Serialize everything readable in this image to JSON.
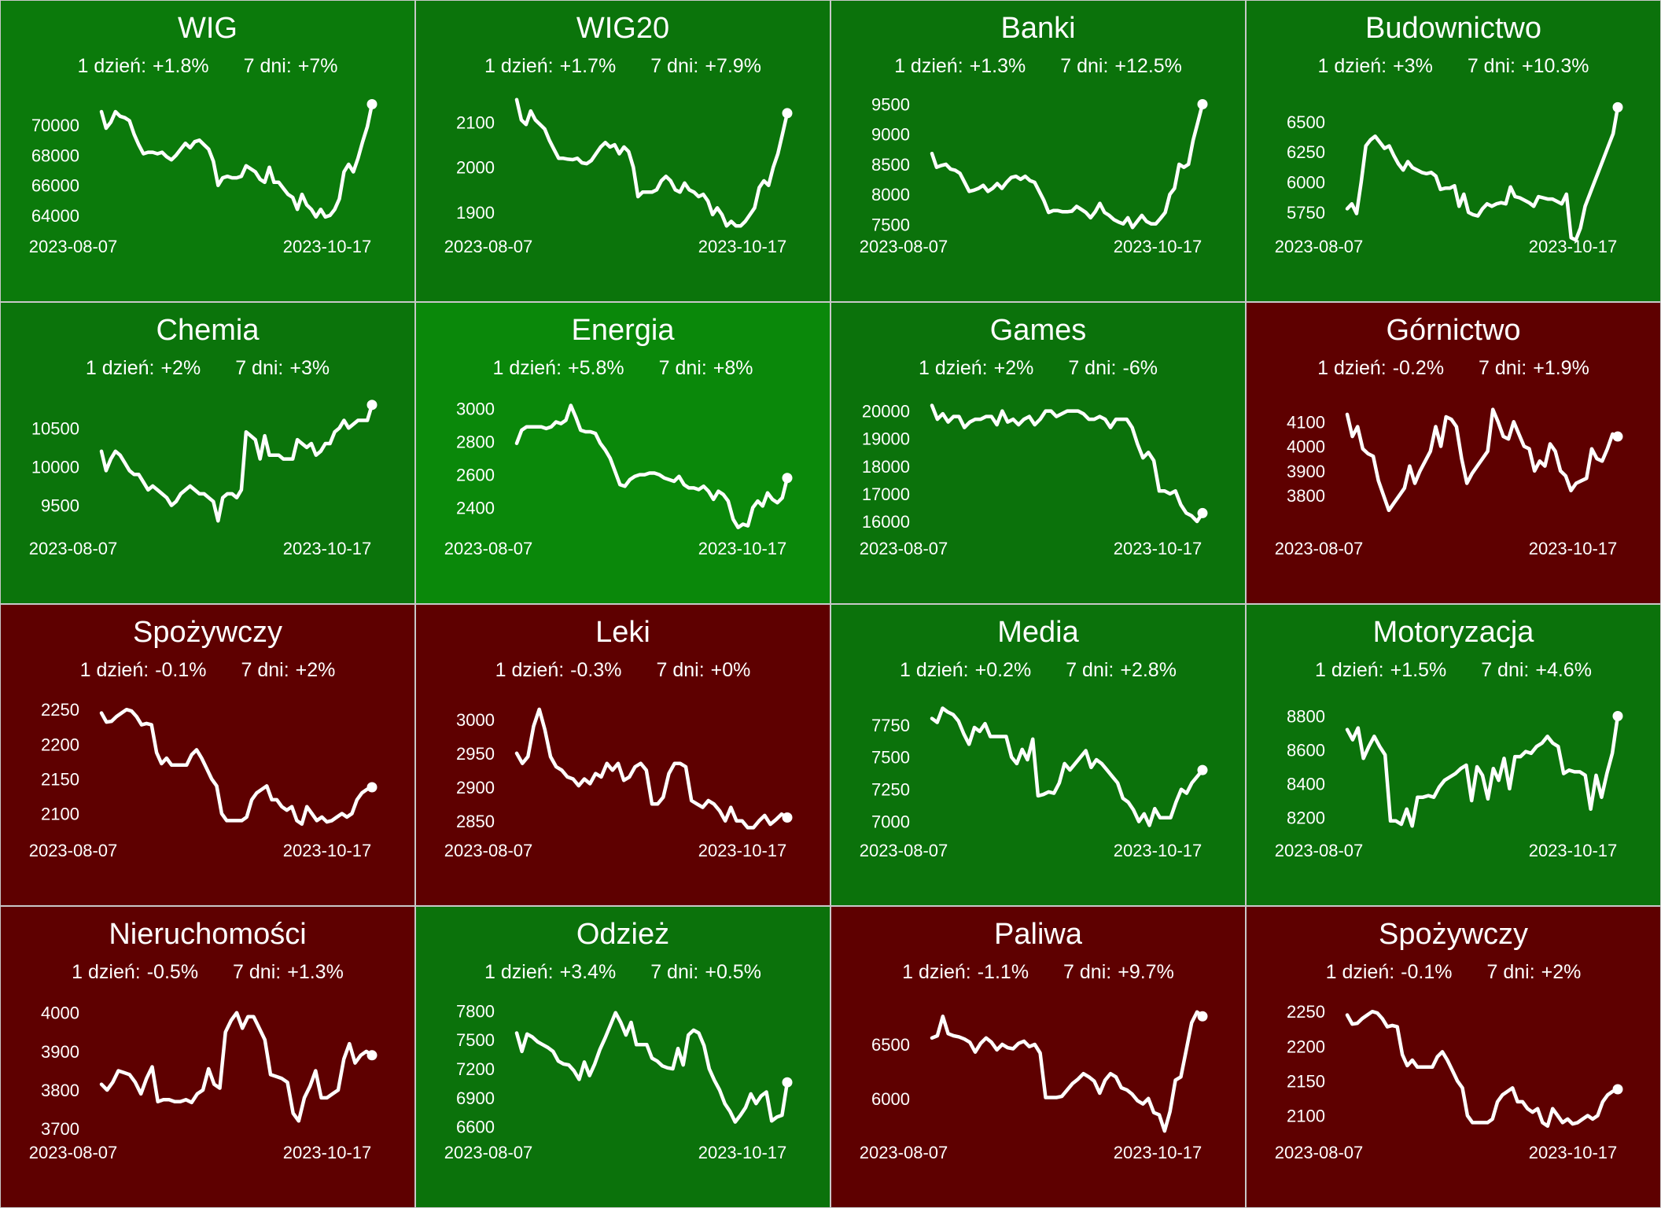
{
  "chart_data": [
    {
      "type": "line",
      "title": "WIG",
      "day1_label": "1 dzień:",
      "day1": "+1.8%",
      "day7_label": "7 dni:",
      "day7": "+7%",
      "bg": "#0b7a0b",
      "x_start": "2023-08-07",
      "x_end": "2023-10-17",
      "yticks": [
        64000,
        66000,
        68000,
        70000
      ],
      "ylim": [
        63000,
        72000
      ],
      "values": [
        70900,
        69800,
        70200,
        70900,
        70600,
        70500,
        70300,
        69400,
        68700,
        68100,
        68200,
        68200,
        68100,
        68200,
        67900,
        67700,
        68000,
        68400,
        68800,
        68500,
        68900,
        69000,
        68700,
        68400,
        67600,
        66000,
        66500,
        66600,
        66500,
        66500,
        66600,
        67300,
        67100,
        66900,
        66400,
        66200,
        67200,
        66200,
        66200,
        65800,
        65400,
        65200,
        64400,
        65400,
        64700,
        64400,
        63900,
        64400,
        63900,
        64000,
        64400,
        65100,
        66900,
        67400,
        66900,
        67800,
        68900,
        69900,
        71400
      ]
    },
    {
      "type": "line",
      "title": "WIG20",
      "day1_label": "1 dzień:",
      "day1": "+1.7%",
      "day7_label": "7 dni:",
      "day7": "+7.9%",
      "bg": "#0b740b",
      "x_start": "2023-08-07",
      "x_end": "2023-10-17",
      "yticks": [
        1900,
        2000,
        2100
      ],
      "ylim": [
        1860,
        2160
      ],
      "values": [
        2150,
        2105,
        2095,
        2125,
        2105,
        2095,
        2085,
        2060,
        2040,
        2020,
        2020,
        2018,
        2017,
        2020,
        2010,
        2008,
        2015,
        2030,
        2045,
        2055,
        2045,
        2050,
        2030,
        2045,
        2035,
        2000,
        1935,
        1945,
        1945,
        1945,
        1950,
        1970,
        1980,
        1970,
        1950,
        1945,
        1965,
        1950,
        1945,
        1935,
        1940,
        1925,
        1895,
        1910,
        1895,
        1870,
        1880,
        1870,
        1870,
        1880,
        1895,
        1910,
        1955,
        1970,
        1960,
        2000,
        2030,
        2075,
        2120
      ]
    },
    {
      "type": "line",
      "title": "Banki",
      "day1_label": "1 dzień:",
      "day1": "+1.3%",
      "day7_label": "7 dni:",
      "day7": "+12.5%",
      "bg": "#0b720b",
      "x_start": "2023-08-07",
      "x_end": "2023-10-17",
      "yticks": [
        7500,
        8000,
        8500,
        9000,
        9500
      ],
      "ylim": [
        7400,
        9650
      ],
      "values": [
        8680,
        8450,
        8480,
        8500,
        8420,
        8400,
        8350,
        8200,
        8050,
        8070,
        8100,
        8150,
        8050,
        8100,
        8180,
        8100,
        8200,
        8280,
        8300,
        8250,
        8300,
        8230,
        8200,
        8050,
        7900,
        7700,
        7730,
        7730,
        7710,
        7710,
        7720,
        7800,
        7750,
        7700,
        7610,
        7710,
        7850,
        7700,
        7650,
        7580,
        7540,
        7510,
        7610,
        7450,
        7550,
        7650,
        7550,
        7510,
        7510,
        7600,
        7700,
        8000,
        8100,
        8500,
        8450,
        8500,
        8900,
        9200,
        9500
      ]
    },
    {
      "type": "line",
      "title": "Budownictwo",
      "day1_label": "1 dzień:",
      "day1": "+3%",
      "day7_label": "7 dni:",
      "day7": "+10.3%",
      "bg": "#0b720b",
      "x_start": "2023-08-07",
      "x_end": "2023-10-17",
      "yticks": [
        5750,
        6000,
        6250,
        6500
      ],
      "ylim": [
        5600,
        6720
      ],
      "values": [
        5780,
        5820,
        5740,
        6000,
        6300,
        6350,
        6380,
        6330,
        6280,
        6300,
        6220,
        6150,
        6100,
        6170,
        6120,
        6100,
        6080,
        6070,
        6080,
        6050,
        5940,
        5950,
        5950,
        5970,
        5800,
        5900,
        5750,
        5730,
        5720,
        5780,
        5820,
        5800,
        5820,
        5830,
        5820,
        5960,
        5880,
        5870,
        5850,
        5830,
        5800,
        5880,
        5870,
        5860,
        5860,
        5840,
        5820,
        5900,
        5540,
        5520,
        5620,
        5800,
        5900,
        6000,
        6100,
        6200,
        6300,
        6400,
        6620
      ]
    },
    {
      "type": "line",
      "title": "Chemia",
      "day1_label": "1 dzień:",
      "day1": "+2%",
      "day7_label": "7 dni:",
      "day7": "+3%",
      "bg": "#0b740b",
      "x_start": "2023-08-07",
      "x_end": "2023-10-17",
      "yticks": [
        9500,
        10000,
        10500
      ],
      "ylim": [
        9150,
        10900
      ],
      "values": [
        10200,
        9950,
        10100,
        10200,
        10150,
        10050,
        9950,
        9900,
        9900,
        9800,
        9700,
        9750,
        9700,
        9650,
        9600,
        9500,
        9550,
        9650,
        9700,
        9750,
        9700,
        9650,
        9650,
        9600,
        9550,
        9300,
        9600,
        9650,
        9650,
        9600,
        9700,
        10450,
        10400,
        10350,
        10100,
        10400,
        10150,
        10150,
        10150,
        10100,
        10100,
        10100,
        10350,
        10300,
        10250,
        10300,
        10150,
        10200,
        10300,
        10300,
        10450,
        10500,
        10600,
        10500,
        10550,
        10600,
        10600,
        10600,
        10800
      ]
    },
    {
      "type": "line",
      "title": "Energia",
      "day1_label": "1 dzień:",
      "day1": "+5.8%",
      "day7_label": "7 dni:",
      "day7": "+8%",
      "bg": "#0a880a",
      "x_start": "2023-08-07",
      "x_end": "2023-10-17",
      "yticks": [
        2400,
        2600,
        2800,
        3000
      ],
      "ylim": [
        2250,
        3070
      ],
      "values": [
        2790,
        2870,
        2890,
        2890,
        2890,
        2890,
        2880,
        2890,
        2920,
        2910,
        2930,
        3020,
        2950,
        2870,
        2860,
        2860,
        2850,
        2790,
        2750,
        2700,
        2620,
        2540,
        2530,
        2570,
        2590,
        2600,
        2600,
        2610,
        2610,
        2600,
        2580,
        2570,
        2560,
        2590,
        2540,
        2520,
        2520,
        2510,
        2530,
        2500,
        2450,
        2500,
        2480,
        2440,
        2330,
        2280,
        2300,
        2290,
        2400,
        2440,
        2410,
        2490,
        2450,
        2430,
        2460,
        2580
      ]
    },
    {
      "type": "line",
      "title": "Games",
      "day1_label": "1 dzień:",
      "day1": "+2%",
      "day7_label": "7 dni:",
      "day7": "-6%",
      "bg": "#0b720b",
      "x_start": "2023-08-07",
      "x_end": "2023-10-17",
      "yticks": [
        16000,
        17000,
        18000,
        19000,
        20000
      ],
      "ylim": [
        15600,
        20500
      ],
      "values": [
        20200,
        19700,
        19900,
        19600,
        19800,
        19800,
        19400,
        19600,
        19700,
        19700,
        19800,
        19800,
        19500,
        20000,
        19600,
        19700,
        19500,
        19700,
        19800,
        19500,
        19700,
        20000,
        20000,
        19800,
        19900,
        20000,
        20000,
        20000,
        19900,
        19700,
        19700,
        19800,
        19700,
        19400,
        19700,
        19700,
        19700,
        19400,
        18800,
        18300,
        18500,
        18200,
        17100,
        17100,
        17000,
        17100,
        16600,
        16300,
        16200,
        16000,
        16300
      ]
    },
    {
      "type": "line",
      "title": "Górnictwo",
      "day1_label": "1 dzień:",
      "day1": "-0.2%",
      "day7_label": "7 dni:",
      "day7": "+1.9%",
      "bg": "#5e0000",
      "x_start": "2023-08-07",
      "x_end": "2023-10-17",
      "yticks": [
        3800,
        3900,
        4000,
        4100
      ],
      "ylim": [
        3650,
        4200
      ],
      "values": [
        4130,
        4040,
        4080,
        3990,
        3970,
        3960,
        3860,
        3800,
        3740,
        3770,
        3800,
        3830,
        3920,
        3850,
        3900,
        3940,
        3980,
        4080,
        4000,
        4120,
        4110,
        4080,
        3950,
        3850,
        3890,
        3920,
        3950,
        3980,
        4150,
        4100,
        4040,
        4030,
        4100,
        4050,
        4000,
        3990,
        3900,
        3940,
        3920,
        4010,
        3980,
        3900,
        3880,
        3820,
        3850,
        3860,
        3870,
        3990,
        3950,
        3940,
        3990,
        4050,
        4040
      ]
    },
    {
      "type": "line",
      "title": "Spożywczy",
      "day1_label": "1 dzień:",
      "day1": "-0.1%",
      "day7_label": "7 dni:",
      "day7": "+2%",
      "bg": "#5e0000",
      "x_start": "2023-08-07",
      "x_end": "2023-10-17",
      "yticks": [
        2100,
        2150,
        2200,
        2250
      ],
      "ylim": [
        2070,
        2265
      ],
      "values": [
        2245,
        2232,
        2233,
        2240,
        2245,
        2250,
        2248,
        2240,
        2228,
        2230,
        2228,
        2188,
        2172,
        2180,
        2170,
        2170,
        2170,
        2170,
        2185,
        2192,
        2180,
        2165,
        2150,
        2140,
        2100,
        2090,
        2090,
        2090,
        2090,
        2095,
        2120,
        2130,
        2135,
        2140,
        2120,
        2120,
        2110,
        2105,
        2110,
        2090,
        2085,
        2110,
        2100,
        2090,
        2095,
        2088,
        2090,
        2095,
        2100,
        2095,
        2100,
        2120,
        2130,
        2135,
        2138
      ]
    },
    {
      "type": "line",
      "title": "Leki",
      "day1_label": "1 dzień:",
      "day1": "-0.3%",
      "day7_label": "7 dni:",
      "day7": "+0%",
      "bg": "#5e0000",
      "x_start": "2023-08-07",
      "x_end": "2023-10-17",
      "yticks": [
        2850,
        2900,
        2950,
        3000
      ],
      "ylim": [
        2830,
        3030
      ],
      "values": [
        2950,
        2935,
        2945,
        2990,
        3015,
        2985,
        2945,
        2930,
        2925,
        2915,
        2912,
        2902,
        2912,
        2905,
        2920,
        2915,
        2935,
        2925,
        2935,
        2910,
        2915,
        2930,
        2935,
        2925,
        2875,
        2875,
        2885,
        2920,
        2935,
        2935,
        2930,
        2880,
        2875,
        2870,
        2880,
        2875,
        2865,
        2850,
        2870,
        2850,
        2850,
        2840,
        2840,
        2850,
        2858,
        2845,
        2852,
        2860,
        2855
      ]
    },
    {
      "type": "line",
      "title": "Media",
      "day1_label": "1 dzień:",
      "day1": "+0.2%",
      "day7_label": "7 dni:",
      "day7": "+2.8%",
      "bg": "#0b720b",
      "x_start": "2023-08-07",
      "x_end": "2023-10-17",
      "yticks": [
        7000,
        7250,
        7500,
        7750
      ],
      "ylim": [
        6900,
        7950
      ],
      "values": [
        7800,
        7770,
        7880,
        7850,
        7830,
        7780,
        7680,
        7600,
        7730,
        7700,
        7760,
        7660,
        7660,
        7660,
        7660,
        7500,
        7450,
        7560,
        7480,
        7640,
        7200,
        7210,
        7230,
        7220,
        7300,
        7450,
        7400,
        7450,
        7500,
        7550,
        7420,
        7480,
        7450,
        7400,
        7350,
        7300,
        7180,
        7150,
        7090,
        7000,
        7060,
        6970,
        7100,
        7030,
        7030,
        7030,
        7150,
        7250,
        7220,
        7300,
        7350,
        7400
      ]
    },
    {
      "type": "line",
      "title": "Motoryzacja",
      "day1_label": "1 dzień:",
      "day1": "+1.5%",
      "day7_label": "7 dni:",
      "day7": "+4.6%",
      "bg": "#0b720b",
      "x_start": "2023-08-07",
      "x_end": "2023-10-17",
      "yticks": [
        8200,
        8400,
        8600,
        8800
      ],
      "ylim": [
        8100,
        8900
      ],
      "values": [
        8720,
        8660,
        8730,
        8550,
        8620,
        8680,
        8620,
        8570,
        8180,
        8180,
        8160,
        8250,
        8150,
        8320,
        8320,
        8330,
        8320,
        8380,
        8420,
        8440,
        8460,
        8490,
        8510,
        8300,
        8500,
        8450,
        8310,
        8490,
        8420,
        8550,
        8370,
        8560,
        8560,
        8590,
        8580,
        8620,
        8640,
        8680,
        8640,
        8620,
        8460,
        8480,
        8470,
        8470,
        8450,
        8250,
        8450,
        8320,
        8460,
        8580,
        8800
      ]
    },
    {
      "type": "line",
      "title": "Nieruchomości",
      "day1_label": "1 dzień:",
      "day1": "-0.5%",
      "day7_label": "7 dni:",
      "day7": "+1.3%",
      "bg": "#5e0000",
      "x_start": "2023-08-07",
      "x_end": "2023-10-17",
      "yticks": [
        3700,
        3800,
        3900,
        4000
      ],
      "ylim": [
        3680,
        4030
      ],
      "values": [
        3815,
        3800,
        3820,
        3850,
        3845,
        3840,
        3820,
        3790,
        3830,
        3860,
        3770,
        3775,
        3775,
        3770,
        3770,
        3775,
        3768,
        3790,
        3800,
        3855,
        3815,
        3805,
        3950,
        3980,
        4000,
        3960,
        3990,
        3990,
        3960,
        3930,
        3840,
        3835,
        3830,
        3820,
        3740,
        3720,
        3780,
        3810,
        3850,
        3780,
        3780,
        3790,
        3800,
        3880,
        3920,
        3870,
        3890,
        3900,
        3890
      ]
    },
    {
      "type": "line",
      "title": "Odzież",
      "day1_label": "1 dzień:",
      "day1": "+3.4%",
      "day7_label": "7 dni:",
      "day7": "+0.5%",
      "bg": "#0b720b",
      "x_start": "2023-08-07",
      "x_end": "2023-10-17",
      "yticks": [
        6600,
        6900,
        7200,
        7500,
        7800
      ],
      "ylim": [
        6500,
        7900
      ],
      "values": [
        7570,
        7380,
        7560,
        7530,
        7480,
        7450,
        7420,
        7380,
        7280,
        7250,
        7240,
        7180,
        7090,
        7270,
        7130,
        7250,
        7400,
        7520,
        7650,
        7780,
        7680,
        7550,
        7680,
        7450,
        7450,
        7450,
        7310,
        7280,
        7230,
        7210,
        7200,
        7410,
        7240,
        7550,
        7600,
        7570,
        7440,
        7200,
        7080,
        6980,
        6840,
        6760,
        6650,
        6720,
        6800,
        6940,
        6840,
        6920,
        6960,
        6660,
        6700,
        6720,
        7060
      ]
    },
    {
      "type": "line",
      "title": "Paliwa",
      "day1_label": "1 dzień:",
      "day1": "-1.1%",
      "day7_label": "7 dni:",
      "day7": "+9.7%",
      "bg": "#5e0000",
      "x_start": "2023-08-07",
      "x_end": "2023-10-17",
      "yticks": [
        6000,
        6500
      ],
      "ylim": [
        5650,
        6900
      ],
      "values": [
        6560,
        6580,
        6760,
        6600,
        6580,
        6570,
        6550,
        6520,
        6430,
        6510,
        6560,
        6520,
        6450,
        6500,
        6470,
        6460,
        6510,
        6530,
        6480,
        6500,
        6420,
        6010,
        6010,
        6010,
        6020,
        6080,
        6140,
        6180,
        6230,
        6200,
        6160,
        6050,
        6170,
        6230,
        6200,
        6100,
        6080,
        6040,
        5980,
        5950,
        6000,
        5870,
        5850,
        5700,
        5880,
        6170,
        6200,
        6450,
        6700,
        6800,
        6760
      ]
    },
    {
      "type": "line",
      "title": "Spożywczy",
      "day1_label": "1 dzień:",
      "day1": "-0.1%",
      "day7_label": "7 dni:",
      "day7": "+2%",
      "bg": "#5e0000",
      "x_start": "2023-08-07",
      "x_end": "2023-10-17",
      "yticks": [
        2100,
        2150,
        2200,
        2250
      ],
      "ylim": [
        2070,
        2265
      ],
      "values": [
        2245,
        2232,
        2233,
        2240,
        2245,
        2250,
        2248,
        2240,
        2228,
        2230,
        2228,
        2188,
        2172,
        2180,
        2170,
        2170,
        2170,
        2170,
        2185,
        2192,
        2180,
        2165,
        2150,
        2140,
        2100,
        2090,
        2090,
        2090,
        2090,
        2095,
        2120,
        2130,
        2135,
        2140,
        2120,
        2120,
        2110,
        2105,
        2110,
        2090,
        2085,
        2110,
        2100,
        2090,
        2095,
        2088,
        2090,
        2095,
        2100,
        2095,
        2100,
        2120,
        2130,
        2135,
        2138
      ]
    }
  ]
}
